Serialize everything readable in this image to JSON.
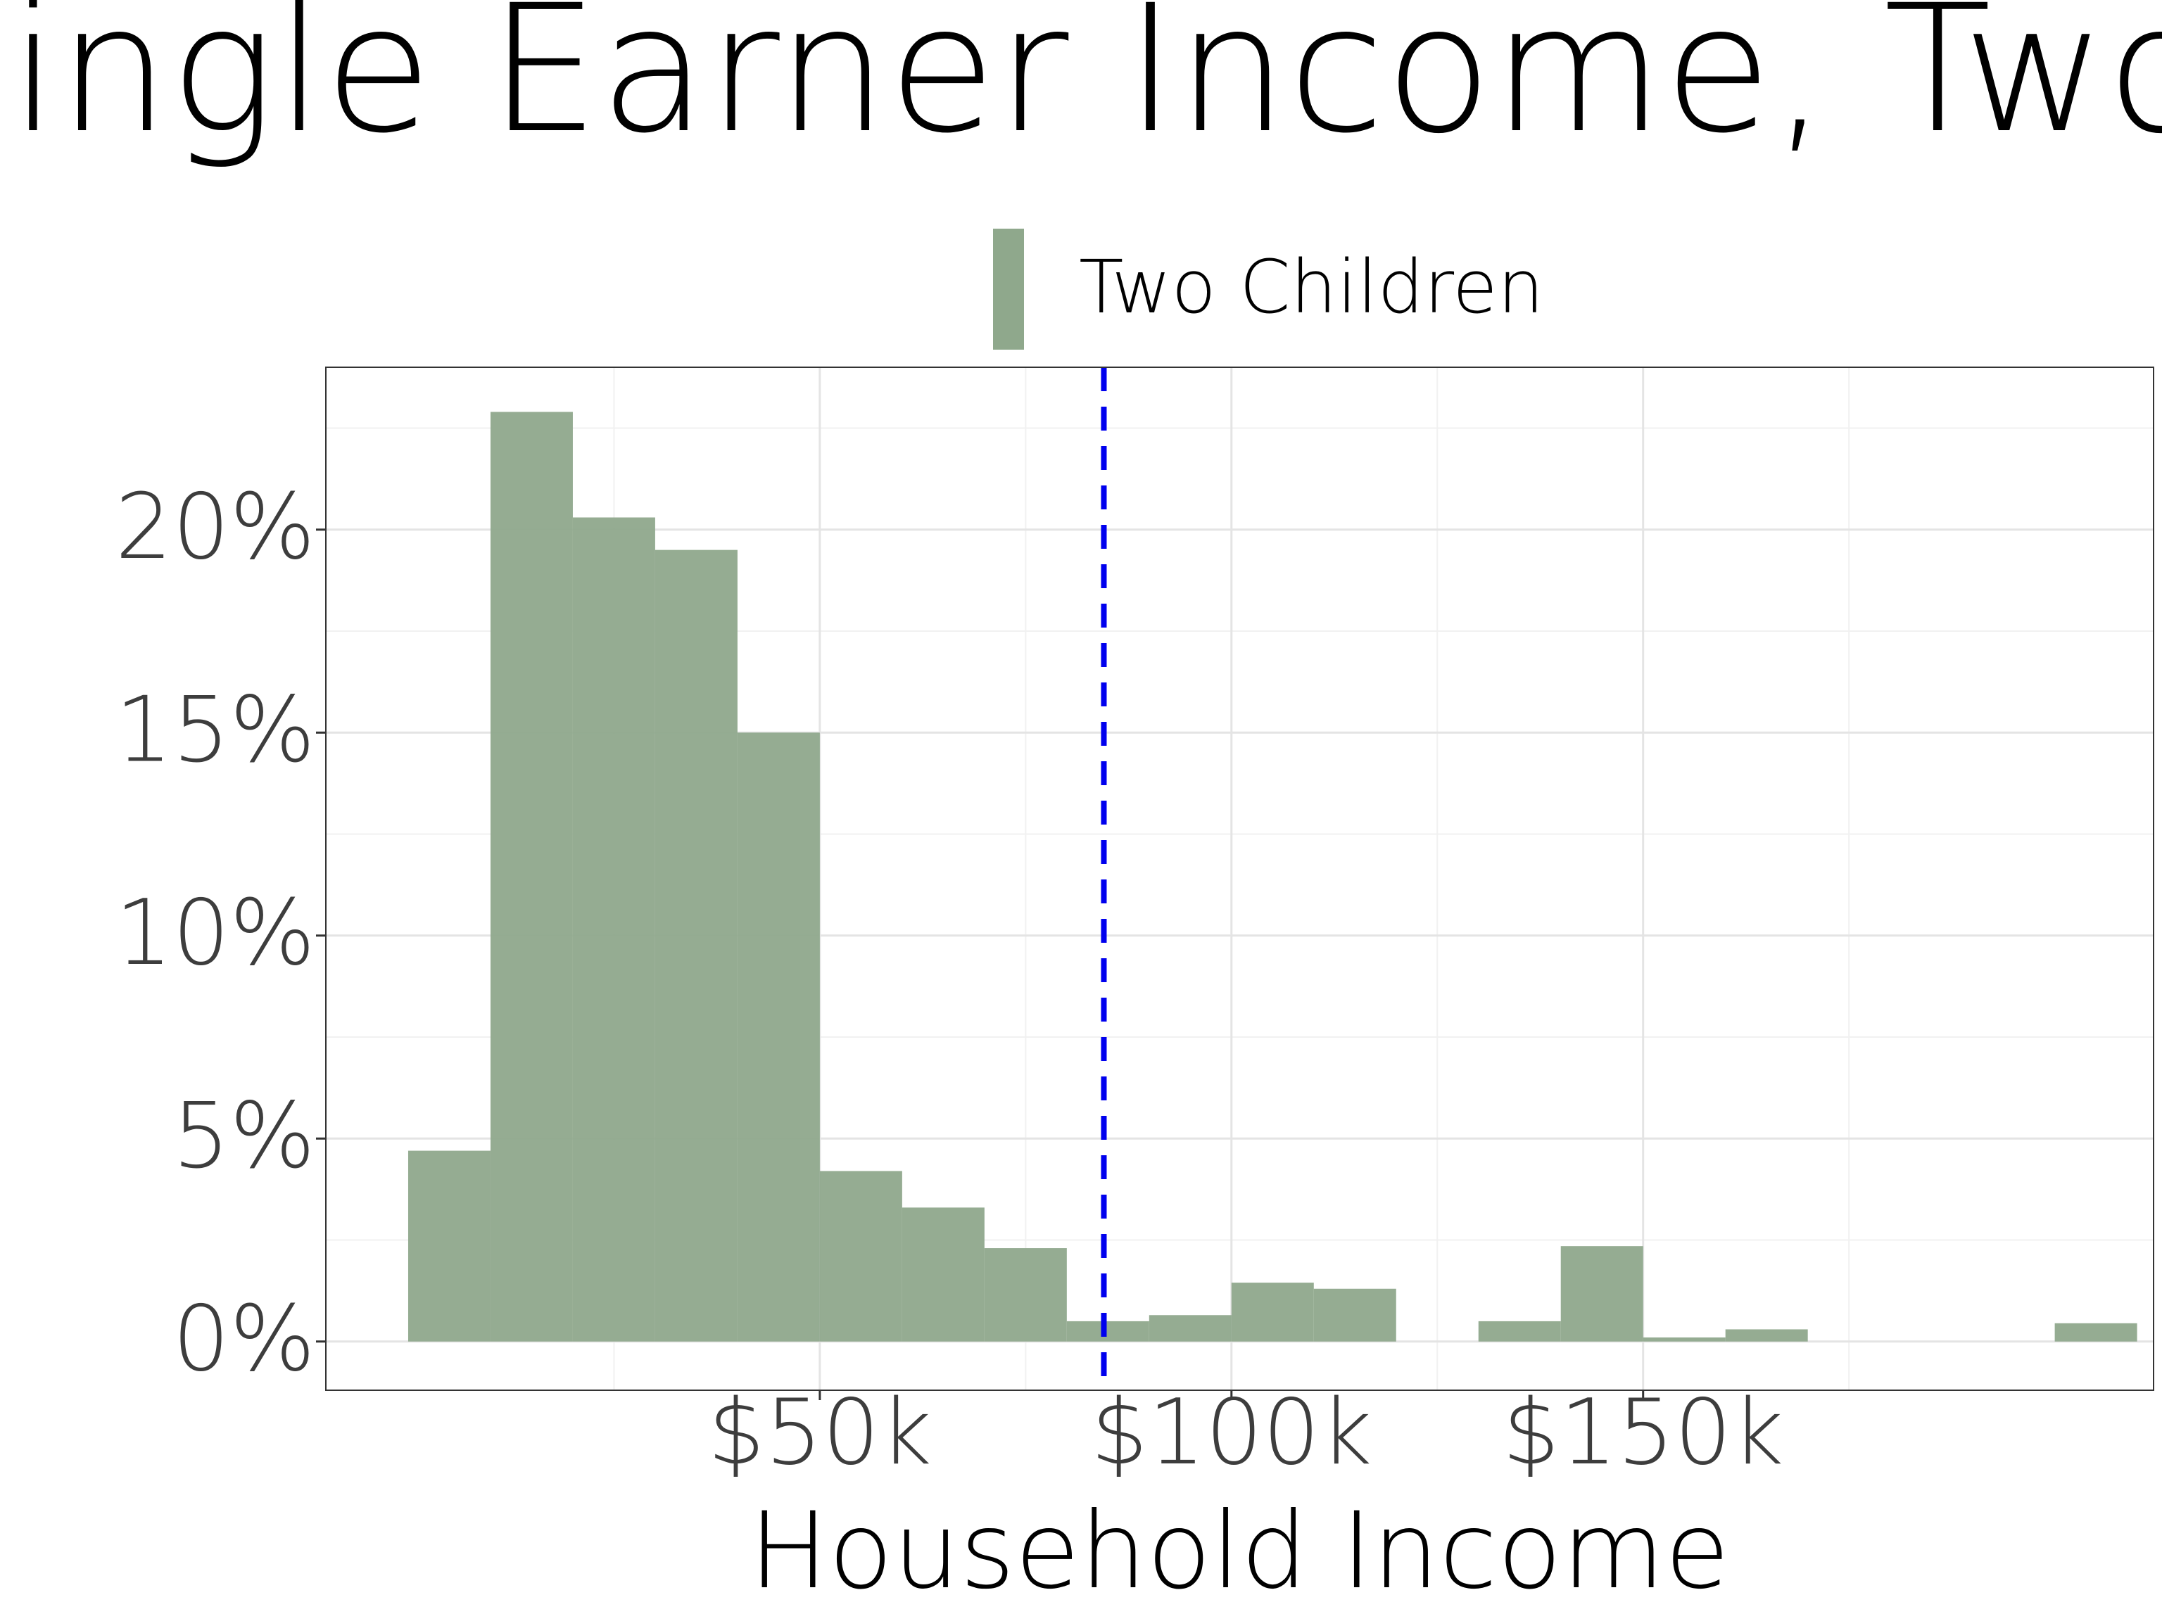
{
  "chart_data": {
    "type": "bar",
    "title": "Single Earner Income, Two",
    "xlabel": "Household Income",
    "ylabel": "",
    "xlim": [
      -10,
      212
    ],
    "ylim": [
      -1.2,
      24.0
    ],
    "x_ticks": [
      {
        "value": 50,
        "label": "$50k"
      },
      {
        "value": 100,
        "label": "$100k"
      },
      {
        "value": 150,
        "label": "$150k"
      }
    ],
    "y_ticks": [
      {
        "value": 0,
        "label": "0%"
      },
      {
        "value": 5,
        "label": "5%"
      },
      {
        "value": 10,
        "label": "10%"
      },
      {
        "value": 15,
        "label": "15%"
      },
      {
        "value": 20,
        "label": "20%"
      }
    ],
    "x_minor_gridlines": [
      25,
      75,
      125,
      175
    ],
    "y_minor_gridlines": [
      2.5,
      7.5,
      12.5,
      17.5,
      22.5
    ],
    "grid": true,
    "legend_position": "top-center",
    "series": [
      {
        "name": "Two Children",
        "color": "#8fa88c",
        "bin_width": 10,
        "bins": [
          {
            "start": 0,
            "end": 10,
            "value": 4.7
          },
          {
            "start": 10,
            "end": 20,
            "value": 22.9
          },
          {
            "start": 20,
            "end": 30,
            "value": 20.3
          },
          {
            "start": 30,
            "end": 40,
            "value": 19.5
          },
          {
            "start": 40,
            "end": 50,
            "value": 15.0
          },
          {
            "start": 50,
            "end": 60,
            "value": 4.2
          },
          {
            "start": 60,
            "end": 70,
            "value": 3.3
          },
          {
            "start": 70,
            "end": 80,
            "value": 2.3
          },
          {
            "start": 80,
            "end": 90,
            "value": 0.5
          },
          {
            "start": 90,
            "end": 100,
            "value": 0.65
          },
          {
            "start": 100,
            "end": 110,
            "value": 1.45
          },
          {
            "start": 110,
            "end": 120,
            "value": 1.3
          },
          {
            "start": 120,
            "end": 130,
            "value": 0.0
          },
          {
            "start": 130,
            "end": 140,
            "value": 0.5
          },
          {
            "start": 140,
            "end": 150,
            "value": 2.35
          },
          {
            "start": 150,
            "end": 160,
            "value": 0.1
          },
          {
            "start": 160,
            "end": 170,
            "value": 0.3
          },
          {
            "start": 170,
            "end": 180,
            "value": 0.0
          },
          {
            "start": 180,
            "end": 190,
            "value": 0.0
          },
          {
            "start": 190,
            "end": 200,
            "value": 0.0
          },
          {
            "start": 200,
            "end": 210,
            "value": 0.45
          }
        ]
      }
    ],
    "reference_line": {
      "x": 84.5,
      "color": "#0000ee",
      "style": "dashed"
    }
  }
}
